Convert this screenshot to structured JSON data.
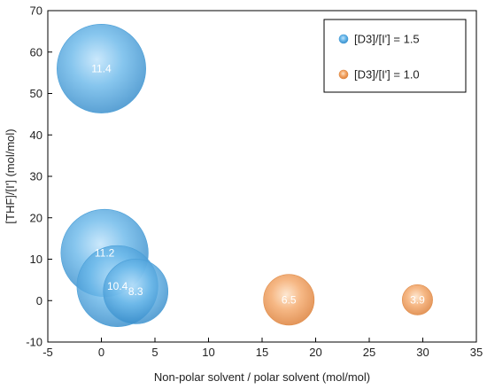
{
  "chart_data": {
    "type": "scatter",
    "subtype": "bubble",
    "xlabel": "Non-polar solvent / polar solvent (mol/mol)",
    "ylabel": "[THF]/[I'] (mol/mol)",
    "xlim": [
      -5,
      35
    ],
    "ylim": [
      -10,
      70
    ],
    "x_ticks": [
      "-5",
      "0",
      "5",
      "10",
      "15",
      "20",
      "25",
      "30",
      "35"
    ],
    "y_ticks": [
      "-10",
      "0",
      "10",
      "20",
      "30",
      "40",
      "50",
      "60",
      "70"
    ],
    "grid": false,
    "legend_position": "top-right",
    "series": [
      {
        "name": "[D3]/[I'] = 1.5",
        "color": "#5aaee4",
        "points": [
          {
            "x": 0.0,
            "y": 56.0,
            "size": 11.4,
            "label": "11.4"
          },
          {
            "x": 0.3,
            "y": 11.5,
            "size": 11.2,
            "label": "11.2"
          },
          {
            "x": 1.5,
            "y": 3.5,
            "size": 10.4,
            "label": "10.4"
          },
          {
            "x": 3.2,
            "y": 2.2,
            "size": 8.3,
            "label": "8.3"
          }
        ]
      },
      {
        "name": "[D3]/[I'] = 1.0",
        "color": "#f09a55",
        "points": [
          {
            "x": 17.5,
            "y": 0.2,
            "size": 6.5,
            "label": "6.5"
          },
          {
            "x": 29.5,
            "y": 0.2,
            "size": 3.9,
            "label": "3.9"
          }
        ]
      }
    ]
  }
}
